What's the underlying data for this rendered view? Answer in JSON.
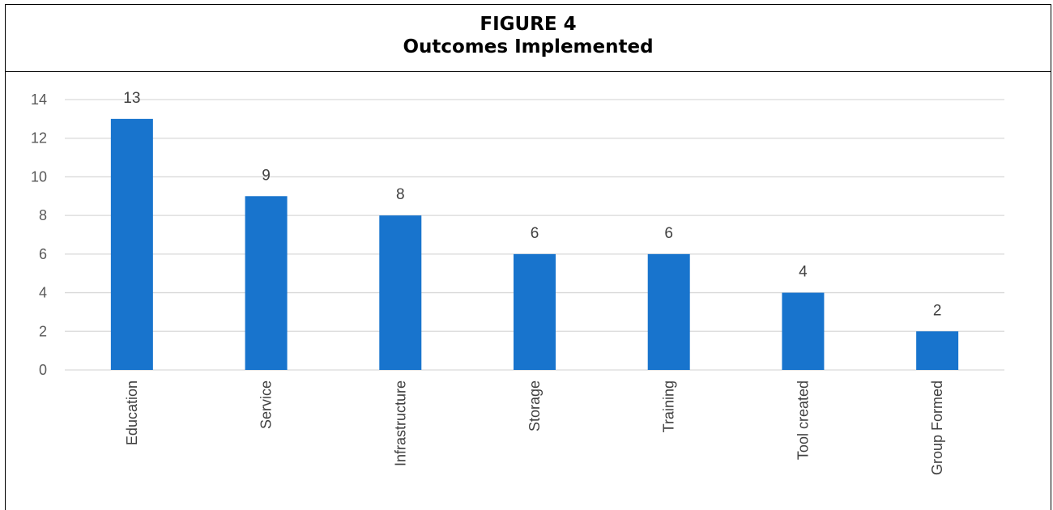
{
  "figure": {
    "label": "FIGURE 4",
    "title": "Outcomes Implemented"
  },
  "chart_data": {
    "type": "bar",
    "categories": [
      "Education",
      "Service",
      "Infrastructure",
      "Storage",
      "Training",
      "Tool created",
      "Group Formed"
    ],
    "values": [
      13,
      9,
      8,
      6,
      6,
      4,
      2
    ],
    "ylim": [
      0,
      14
    ],
    "yticks": [
      0,
      2,
      4,
      6,
      8,
      10,
      12,
      14
    ],
    "grid": true,
    "data_labels": true,
    "bar_color": "#1874cd",
    "grid_color": "#d9d9d9"
  }
}
